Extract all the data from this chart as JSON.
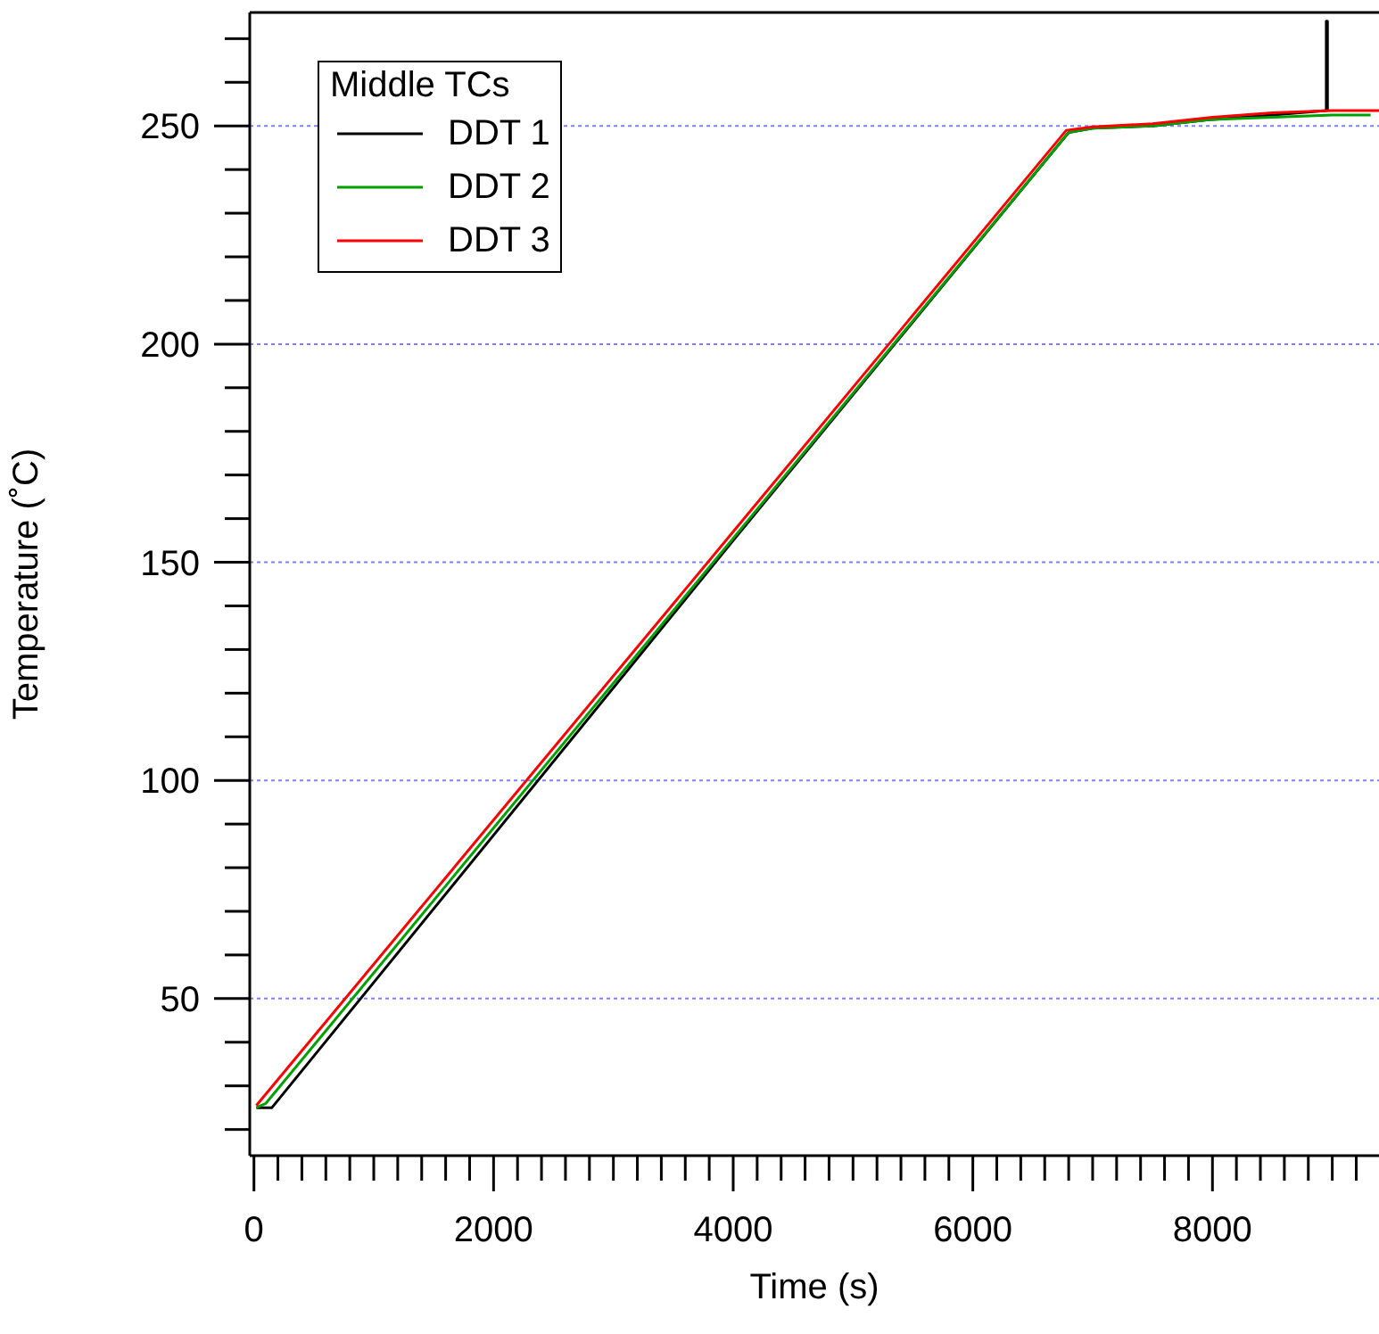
{
  "chart_data": {
    "type": "line",
    "xlabel": "Time (s)",
    "ylabel": "Temperature (˚C)",
    "legend_title": "Middle TCs",
    "legend": "top left",
    "grid": "y",
    "line_style": "solid",
    "marker": "none",
    "xlim": [
      -35,
      9390
    ],
    "ylim": [
      14,
      276
    ],
    "xticks": [
      0,
      {
        "value": 200,
        "label": null
      },
      {
        "value": 400,
        "label": null
      },
      {
        "value": 600,
        "label": null
      },
      {
        "value": 800,
        "label": null
      },
      {
        "value": 1000,
        "label": null
      },
      {
        "value": 1200,
        "label": null
      },
      {
        "value": 1400,
        "label": null
      },
      {
        "value": 1600,
        "label": null
      },
      {
        "value": 1800,
        "label": null
      },
      2000,
      {
        "value": 2200,
        "label": null
      },
      {
        "value": 2400,
        "label": null
      },
      {
        "value": 2600,
        "label": null
      },
      {
        "value": 2800,
        "label": null
      },
      {
        "value": 3000,
        "label": null
      },
      {
        "value": 3200,
        "label": null
      },
      {
        "value": 3400,
        "label": null
      },
      {
        "value": 3600,
        "label": null
      },
      {
        "value": 3800,
        "label": null
      },
      4000,
      {
        "value": 4200,
        "label": null
      },
      {
        "value": 4400,
        "label": null
      },
      {
        "value": 4600,
        "label": null
      },
      {
        "value": 4800,
        "label": null
      },
      {
        "value": 5000,
        "label": null
      },
      {
        "value": 5200,
        "label": null
      },
      {
        "value": 5400,
        "label": null
      },
      {
        "value": 5600,
        "label": null
      },
      {
        "value": 5800,
        "label": null
      },
      6000,
      {
        "value": 6200,
        "label": null
      },
      {
        "value": 6400,
        "label": null
      },
      {
        "value": 6600,
        "label": null
      },
      {
        "value": 6800,
        "label": null
      },
      {
        "value": 7000,
        "label": null
      },
      {
        "value": 7200,
        "label": null
      },
      {
        "value": 7400,
        "label": null
      },
      {
        "value": 7600,
        "label": null
      },
      {
        "value": 7800,
        "label": null
      },
      8000,
      {
        "value": 8200,
        "label": null
      },
      {
        "value": 8400,
        "label": null
      },
      {
        "value": 8600,
        "label": null
      },
      {
        "value": 8800,
        "label": null
      },
      {
        "value": 9000,
        "label": null
      },
      {
        "value": 9200,
        "label": null
      }
    ],
    "yticks": [
      {
        "value": 20,
        "label": null
      },
      {
        "value": 30,
        "label": null
      },
      {
        "value": 40,
        "label": null
      },
      50,
      {
        "value": 60,
        "label": null
      },
      {
        "value": 70,
        "label": null
      },
      {
        "value": 80,
        "label": null
      },
      {
        "value": 90,
        "label": null
      },
      100,
      {
        "value": 110,
        "label": null
      },
      {
        "value": 120,
        "label": null
      },
      {
        "value": 130,
        "label": null
      },
      {
        "value": 140,
        "label": null
      },
      150,
      {
        "value": 160,
        "label": null
      },
      {
        "value": 170,
        "label": null
      },
      {
        "value": 180,
        "label": null
      },
      {
        "value": 190,
        "label": null
      },
      200,
      {
        "value": 210,
        "label": null
      },
      {
        "value": 220,
        "label": null
      },
      {
        "value": 230,
        "label": null
      },
      {
        "value": 240,
        "label": null
      },
      250,
      {
        "value": 260,
        "label": null
      },
      {
        "value": 270,
        "label": null
      }
    ],
    "series": [
      {
        "name": "DDT 1",
        "color": "#000000",
        "x": [
          20,
          150,
          4000,
          6800,
          7000,
          7500,
          8000,
          8500,
          8950,
          8950,
          8960,
          8960
        ],
        "values": [
          25,
          25,
          155,
          248.5,
          249.5,
          250,
          251.5,
          252.5,
          253.5,
          274,
          274,
          253.5
        ]
      },
      {
        "name": "DDT 2",
        "color": "#00a000",
        "x": [
          20,
          100,
          4000,
          6800,
          7000,
          7500,
          8000,
          8500,
          9000,
          9320
        ],
        "values": [
          25,
          26,
          155.5,
          248.5,
          249.5,
          250,
          251.5,
          252,
          252.5,
          252.5
        ]
      },
      {
        "name": "DDT 3",
        "color": "#ff0000",
        "x": [
          20,
          4000,
          6780,
          7000,
          7500,
          8000,
          8500,
          9000,
          9390
        ],
        "values": [
          25.5,
          157,
          249,
          249.8,
          250.5,
          252,
          253,
          253.5,
          253.5
        ]
      }
    ]
  }
}
